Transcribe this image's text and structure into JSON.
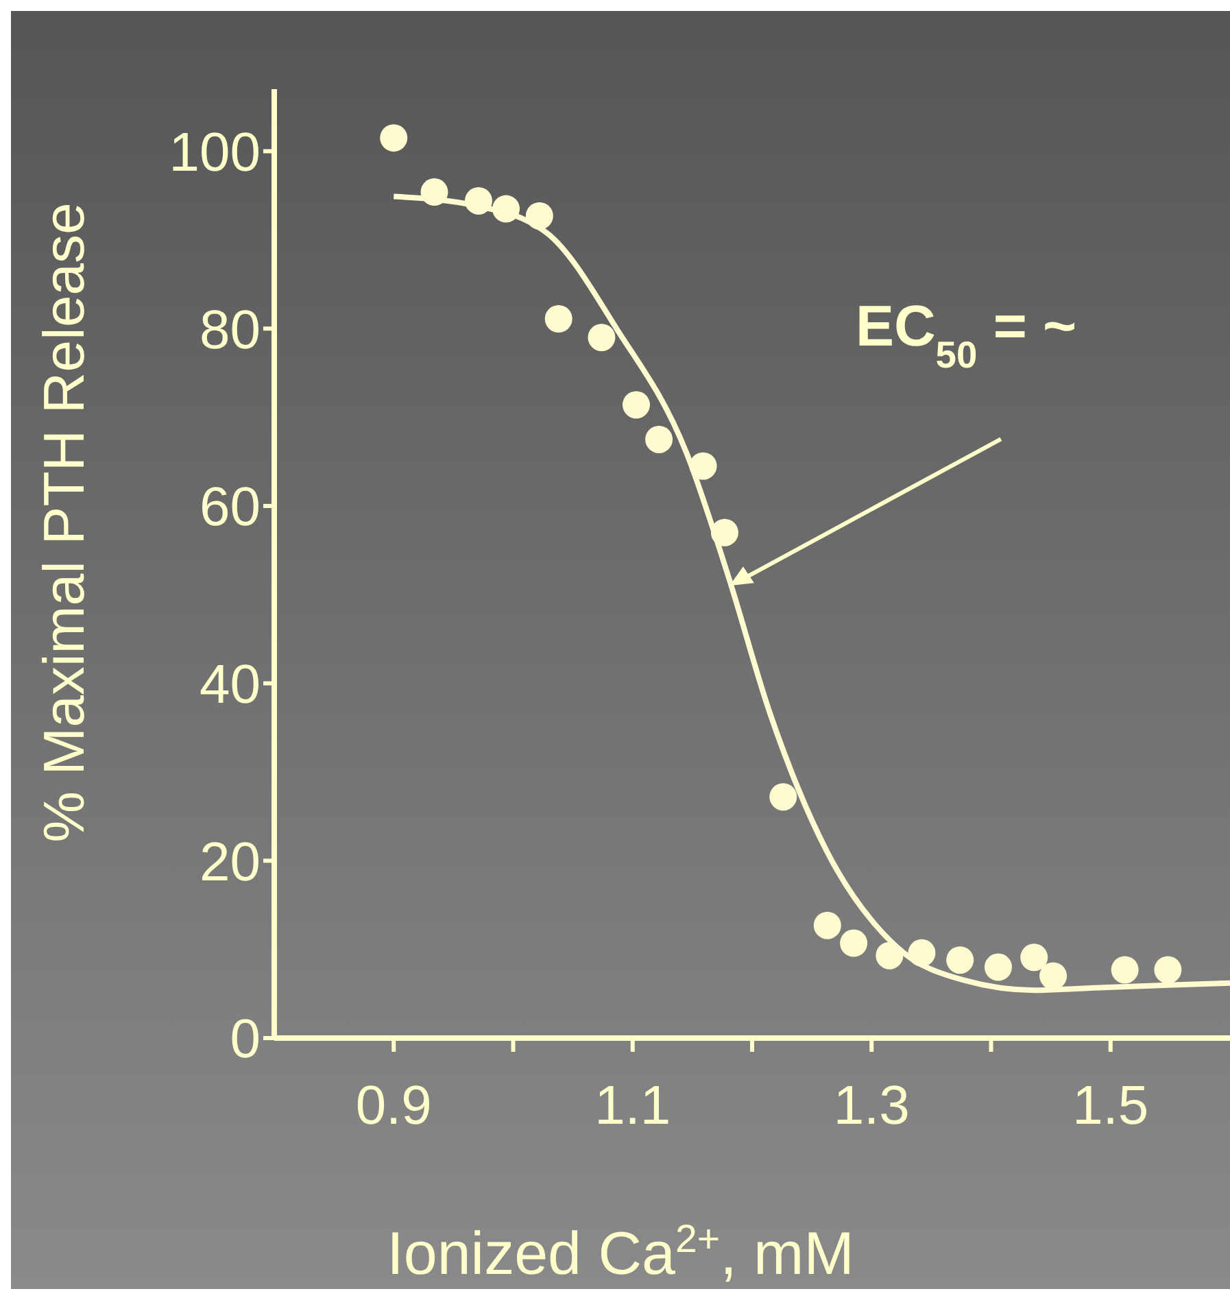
{
  "chart_data": {
    "type": "scatter",
    "xlabel": "Ionized Ca$^{2+}$, mM",
    "ylabel": "% Maximal PTH Release",
    "xlim": [
      0.8,
      1.6
    ],
    "ylim": [
      0,
      107
    ],
    "xticks": [
      0.9,
      {
        "value": 1.0,
        "label": null
      },
      1.1,
      {
        "value": 1.2,
        "label": null
      },
      1.3,
      {
        "value": 1.4,
        "label": null
      },
      1.5
    ],
    "yticks": [
      0,
      20,
      40,
      60,
      80,
      100
    ],
    "grid": false,
    "legend": false,
    "marker": "circle",
    "series": [
      {
        "color": "#fffbd0",
        "x": [
          0.9,
          0.934,
          0.971,
          0.994,
          1.022,
          1.038,
          1.074,
          1.103,
          1.122,
          1.159,
          1.177,
          1.226,
          1.263,
          1.285,
          1.315,
          1.342,
          1.374,
          1.406,
          1.436,
          1.452,
          1.512,
          1.548
        ],
        "values": [
          101.5,
          95.4,
          94.4,
          93.5,
          92.7,
          81.1,
          79.0,
          71.4,
          67.5,
          64.5,
          57.0,
          27.2,
          12.7,
          10.7,
          9.3,
          9.6,
          8.8,
          8.0,
          9.1,
          7.0,
          7.7,
          7.7
        ]
      },
      {
        "type": "line",
        "color": "#fffbd0",
        "line_style": "solid",
        "marker": "none",
        "x": [
          0.9,
          0.971,
          1.029,
          1.087,
          1.145,
          1.18,
          1.215,
          1.262,
          1.32,
          1.378,
          1.436,
          1.494,
          1.552,
          1.6
        ],
        "values": [
          94.9,
          93.8,
          90.7,
          79.9,
          66.0,
          52.1,
          36.6,
          21.2,
          10.4,
          6.5,
          5.4,
          5.7,
          6.0,
          6.2
        ]
      }
    ],
    "annotations": [
      {
        "text": "EC$_{50}$ = ~",
        "x": 1.181,
        "y": 51
      }
    ]
  }
}
